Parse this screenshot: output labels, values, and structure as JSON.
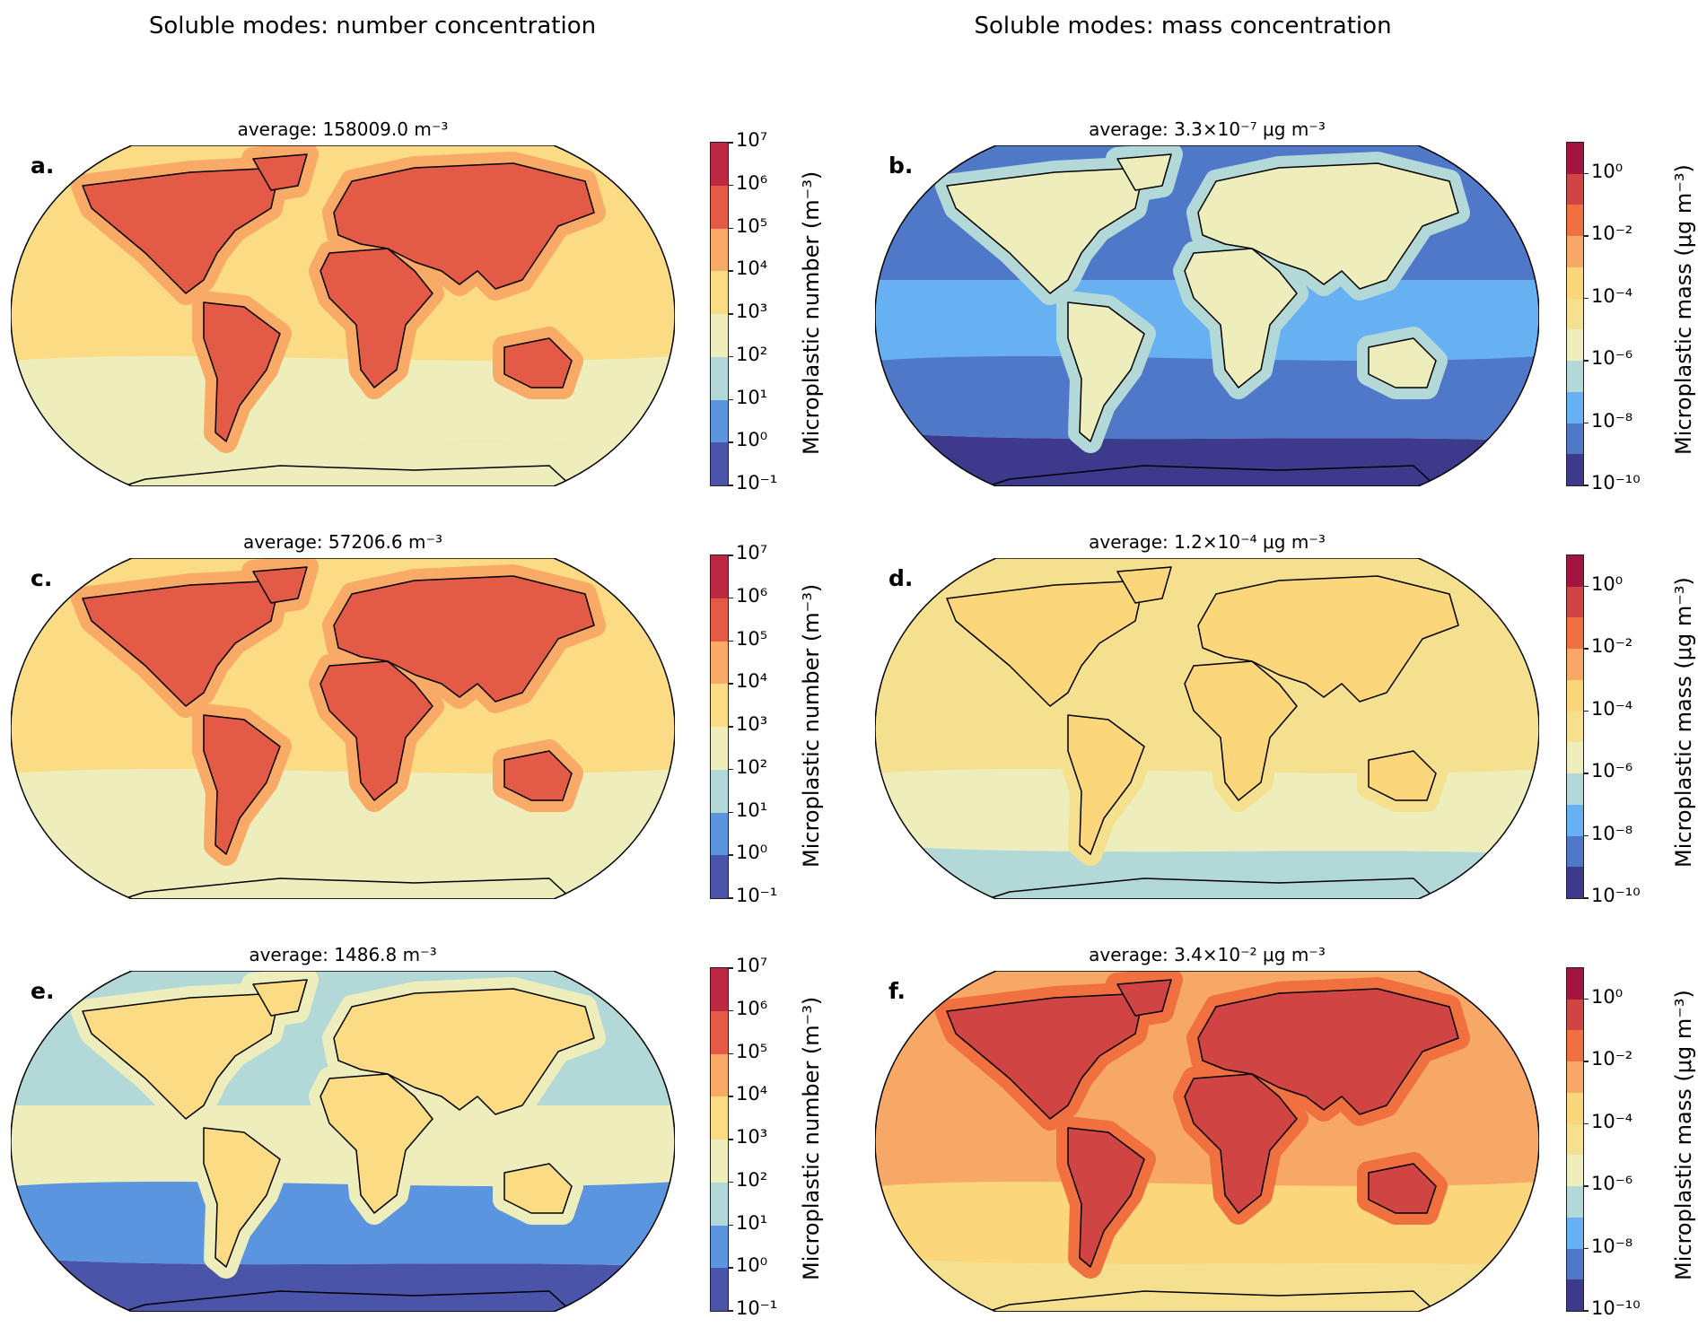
{
  "column_titles": [
    "Soluble modes: number concentration",
    "Soluble modes: mass concentration"
  ],
  "colorbars": {
    "number": {
      "label": "Microplastic number (m⁻³)",
      "range_exp": [
        -1,
        7
      ],
      "ticks": [
        "10⁻¹",
        "10⁰",
        "10¹",
        "10²",
        "10³",
        "10⁴",
        "10⁵",
        "10⁶",
        "10⁷"
      ],
      "tick_exp": [
        -1,
        0,
        1,
        2,
        3,
        4,
        5,
        6,
        7
      ],
      "colors": [
        "#4a54a8",
        "#5b95e0",
        "#b3d8d8",
        "#eeedbc",
        "#fbdc84",
        "#f8aa66",
        "#e35a47",
        "#bc2742"
      ]
    },
    "mass": {
      "label": "Microplastic mass (μg m⁻³)",
      "range_exp": [
        -10,
        1
      ],
      "ticks": [
        "10⁻¹⁰",
        "10⁻⁸",
        "10⁻⁶",
        "10⁻⁴",
        "10⁻²",
        "10⁰"
      ],
      "tick_exp": [
        -10,
        -8,
        -6,
        -4,
        -2,
        0
      ],
      "colors": [
        "#3d3a8c",
        "#4f79c8",
        "#67b1f3",
        "#b3d8d8",
        "#eeedbc",
        "#f5e08f",
        "#fbd67a",
        "#f8a866",
        "#f07040",
        "#d04444",
        "#a3143f"
      ]
    }
  },
  "panels": [
    {
      "label": "a.",
      "average": "average: 158009.0 m⁻³",
      "colorbar": "number",
      "colors": {
        "north": "#fbdc84",
        "tropics": "#fbdc84",
        "south": "#eeedbc",
        "far_south": "#eeedbc",
        "halo": "#f8aa66",
        "land": "#e35a47"
      }
    },
    {
      "label": "b.",
      "average": "average: 3.3×10⁻⁷ μg m⁻³",
      "colorbar": "mass",
      "colors": {
        "north": "#4f79c8",
        "tropics": "#67b1f3",
        "south": "#4f79c8",
        "far_south": "#3d3a8c",
        "halo": "#b3d8d8",
        "land": "#eeedbc"
      }
    },
    {
      "label": "c.",
      "average": "average: 57206.6 m⁻³",
      "colorbar": "number",
      "colors": {
        "north": "#fbdc84",
        "tropics": "#fbdc84",
        "south": "#eeedbc",
        "far_south": "#eeedbc",
        "halo": "#f8aa66",
        "land": "#e35a47"
      }
    },
    {
      "label": "d.",
      "average": "average: 1.2×10⁻⁴ μg m⁻³",
      "colorbar": "mass",
      "colors": {
        "north": "#f5e08f",
        "tropics": "#f5e08f",
        "south": "#eeedbc",
        "far_south": "#b3d8d8",
        "halo": "#f5e08f",
        "land": "#fbd67a"
      }
    },
    {
      "label": "e.",
      "average": "average: 1486.8 m⁻³",
      "colorbar": "number",
      "colors": {
        "north": "#b3d8d8",
        "tropics": "#eeedbc",
        "south": "#5b95e0",
        "far_south": "#4a54a8",
        "halo": "#eeedbc",
        "land": "#fbdc84"
      }
    },
    {
      "label": "f.",
      "average": "average: 3.4×10⁻² μg m⁻³",
      "colorbar": "mass",
      "colors": {
        "north": "#f8a866",
        "tropics": "#f8a866",
        "south": "#fbd67a",
        "far_south": "#f5e08f",
        "halo": "#f07040",
        "land": "#d04444"
      }
    }
  ]
}
